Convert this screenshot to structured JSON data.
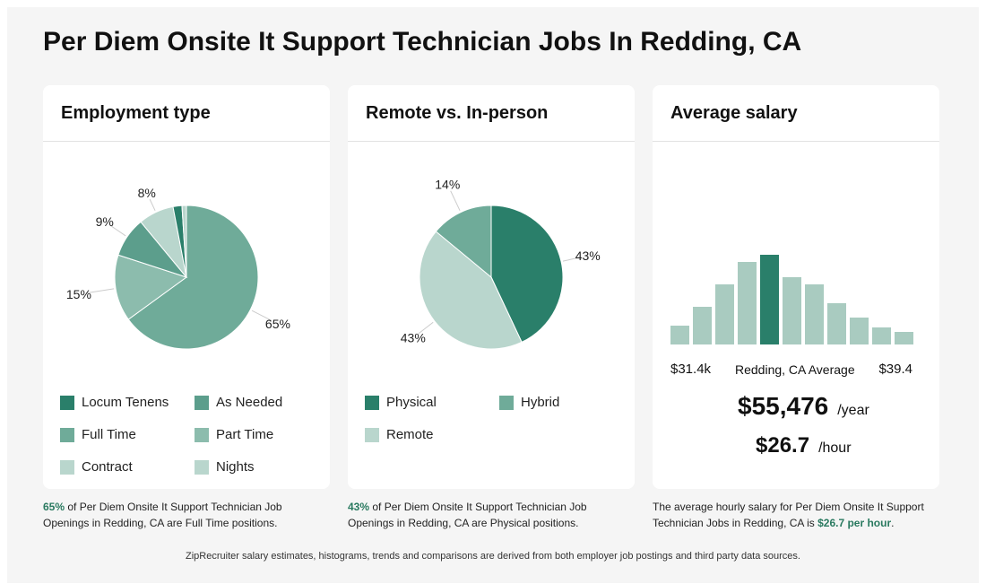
{
  "title": "Per Diem Onsite It Support Technician Jobs In Redding, CA",
  "cards": {
    "employment": {
      "title": "Employment type"
    },
    "remote": {
      "title": "Remote vs. In-person"
    },
    "salary": {
      "title": "Average salary"
    }
  },
  "colors": {
    "dark": "#2a7f6a",
    "mid": "#5c9e8c",
    "main": "#6fab99",
    "light2": "#8cbcad",
    "light": "#b9d6cd"
  },
  "employment_legend": [
    {
      "label": "Locum Tenens",
      "color": "#2a7f6a"
    },
    {
      "label": "As Needed",
      "color": "#5c9e8c"
    },
    {
      "label": "Full Time",
      "color": "#6fab99"
    },
    {
      "label": "Part Time",
      "color": "#8cbcad"
    },
    {
      "label": "Contract",
      "color": "#b9d6cd"
    },
    {
      "label": "Nights",
      "color": "#b9d6cd"
    }
  ],
  "remote_legend": [
    {
      "label": "Physical",
      "color": "#2a7f6a"
    },
    {
      "label": "Hybrid",
      "color": "#6fab99"
    },
    {
      "label": "Remote",
      "color": "#b9d6cd"
    }
  ],
  "chart_data": [
    {
      "type": "pie",
      "title": "Employment type",
      "slices": [
        {
          "name": "Full Time",
          "value": 65,
          "label": "65%",
          "color": "#6fab99"
        },
        {
          "name": "Part Time",
          "value": 15,
          "label": "15%",
          "color": "#8cbcad"
        },
        {
          "name": "As Needed",
          "value": 9,
          "label": "9%",
          "color": "#5c9e8c"
        },
        {
          "name": "Contract",
          "value": 8,
          "label": "8%",
          "color": "#b9d6cd"
        },
        {
          "name": "Locum Tenens",
          "value": 2,
          "label": "",
          "color": "#2a7f6a"
        },
        {
          "name": "Nights",
          "value": 1,
          "label": "",
          "color": "#b9d6cd"
        }
      ]
    },
    {
      "type": "pie",
      "title": "Remote vs. In-person",
      "slices": [
        {
          "name": "Physical",
          "value": 43,
          "label": "43%",
          "color": "#2a7f6a"
        },
        {
          "name": "Remote",
          "value": 43,
          "label": "43%",
          "color": "#b9d6cd"
        },
        {
          "name": "Hybrid",
          "value": 14,
          "label": "14%",
          "color": "#6fab99"
        }
      ]
    },
    {
      "type": "bar",
      "title": "Average salary",
      "values": [
        21,
        42,
        67,
        92,
        100,
        75,
        67,
        46,
        30,
        19,
        14
      ],
      "highlight_index": 4,
      "highlight_color": "#2a7f6a",
      "bar_color": "#a9cbc0",
      "ylim": [
        0,
        100
      ]
    }
  ],
  "salary": {
    "min_label": "$31.4k",
    "max_label": "$39.4",
    "avg_label": "Redding, CA Average",
    "yearly": "$55,476",
    "yearly_unit": "/year",
    "hourly": "$26.7",
    "hourly_unit": "/hour"
  },
  "captions": {
    "employment": {
      "pct": "65%",
      "text": " of Per Diem Onsite It Support Technician Job Openings in Redding, CA are Full Time positions."
    },
    "remote": {
      "pct": "43%",
      "text": " of Per Diem Onsite It Support Technician Job Openings in Redding, CA are Physical positions."
    },
    "salary": {
      "pre": "The average hourly salary for Per Diem Onsite It Support Technician Jobs in Redding, CA is ",
      "hl": "$26.7 per hour",
      "post": "."
    }
  },
  "footer": "ZipRecruiter salary estimates, histograms, trends and comparisons are derived from both employer job postings and third party data sources."
}
